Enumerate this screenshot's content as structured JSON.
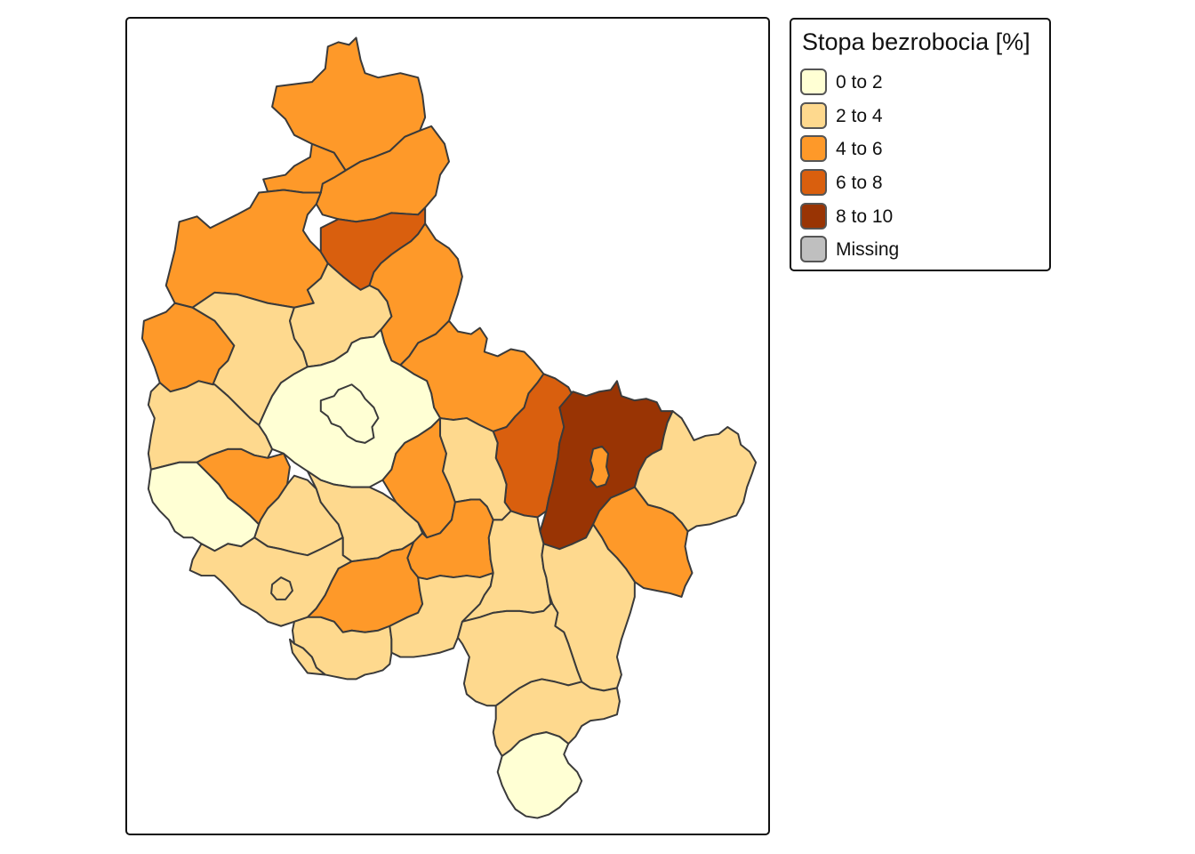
{
  "legend": {
    "title": "Stopa bezrobocia [%]",
    "items": [
      {
        "label": "0 to 2",
        "color": "#ffffd4"
      },
      {
        "label": "2 to 4",
        "color": "#fed98e"
      },
      {
        "label": "4 to 6",
        "color": "#fe9929"
      },
      {
        "label": "6 to 8",
        "color": "#d95f0e"
      },
      {
        "label": "8 to 10",
        "color": "#993404"
      },
      {
        "label": "Missing",
        "color": "#bfbfbf"
      }
    ]
  },
  "regions": [
    {
      "name": "north-tip",
      "class": "4 to 6"
    },
    {
      "name": "north-east-1",
      "class": "4 to 6"
    },
    {
      "name": "north-west-1",
      "class": "4 to 6"
    },
    {
      "name": "north-west-2",
      "class": "4 to 6"
    },
    {
      "name": "north-center",
      "class": "6 to 8"
    },
    {
      "name": "north-east-2",
      "class": "4 to 6"
    },
    {
      "name": "west-1",
      "class": "4 to 6"
    },
    {
      "name": "west-center-1",
      "class": "2 to 4"
    },
    {
      "name": "center-north",
      "class": "2 to 4"
    },
    {
      "name": "center-east-1",
      "class": "4 to 6"
    },
    {
      "name": "west-2",
      "class": "2 to 4"
    },
    {
      "name": "center",
      "class": "0 to 2"
    },
    {
      "name": "center-city",
      "class": "0 to 2"
    },
    {
      "name": "east-1",
      "class": "6 to 8"
    },
    {
      "name": "east-2",
      "class": "8 to 10"
    },
    {
      "name": "east-2-city",
      "class": "4 to 6"
    },
    {
      "name": "far-east",
      "class": "2 to 4"
    },
    {
      "name": "east-3",
      "class": "4 to 6"
    },
    {
      "name": "south-west-1",
      "class": "0 to 2"
    },
    {
      "name": "south-west-2",
      "class": "4 to 6"
    },
    {
      "name": "south-center-1",
      "class": "2 to 4"
    },
    {
      "name": "south-center-2",
      "class": "2 to 4"
    },
    {
      "name": "center-south-1",
      "class": "4 to 6"
    },
    {
      "name": "center-south-2",
      "class": "2 to 4"
    },
    {
      "name": "center-south-3",
      "class": "4 to 6"
    },
    {
      "name": "south-1",
      "class": "2 to 4"
    },
    {
      "name": "south-1-city",
      "class": "2 to 4"
    },
    {
      "name": "south-2",
      "class": "4 to 6"
    },
    {
      "name": "south-3",
      "class": "2 to 4"
    },
    {
      "name": "south-4",
      "class": "2 to 4"
    },
    {
      "name": "south-5",
      "class": "2 to 4"
    },
    {
      "name": "south-east-1",
      "class": "2 to 4"
    },
    {
      "name": "south-east-2",
      "class": "2 to 4"
    },
    {
      "name": "south-6",
      "class": "2 to 4"
    },
    {
      "name": "south-7",
      "class": "2 to 4"
    },
    {
      "name": "south-tip",
      "class": "0 to 2"
    }
  ]
}
